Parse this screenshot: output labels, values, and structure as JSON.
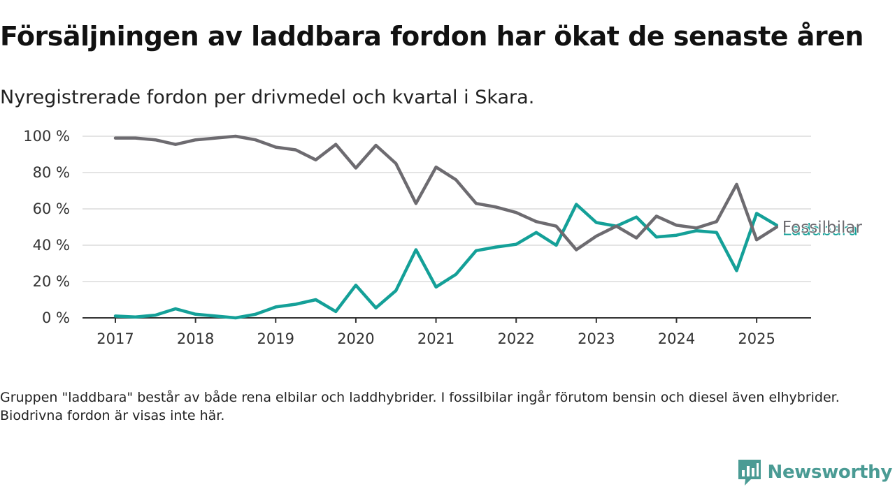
{
  "title": "Försäljningen av laddbara fordon har ökat de senaste åren",
  "subtitle": "Nyregistrerade fordon per drivmedel och kvartal i Skara.",
  "footnote": "Gruppen \"laddbara\" består av både rena elbilar och laddhybrider. I fossilbilar ingår förutom bensin och diesel även elhybrider. Biodrivna fordon är visas inte här.",
  "brand": {
    "name": "Newsworthy",
    "icon": "newsworthy-logo-icon",
    "color": "#4a9b94"
  },
  "chart_data": {
    "type": "line",
    "xlabel": "",
    "ylabel": "",
    "ylim": [
      0,
      100
    ],
    "y_ticks": [
      0,
      20,
      40,
      60,
      80,
      100
    ],
    "y_tick_suffix": " %",
    "x_ticks": [
      "2017",
      "2018",
      "2019",
      "2020",
      "2021",
      "2022",
      "2023",
      "2024",
      "2025"
    ],
    "grid": true,
    "legend": "direct labels at line ends (right)",
    "x": [
      "2017 Q1",
      "2017 Q2",
      "2017 Q3",
      "2017 Q4",
      "2018 Q1",
      "2018 Q2",
      "2018 Q3",
      "2018 Q4",
      "2019 Q1",
      "2019 Q2",
      "2019 Q3",
      "2019 Q4",
      "2020 Q1",
      "2020 Q2",
      "2020 Q3",
      "2020 Q4",
      "2021 Q1",
      "2021 Q2",
      "2021 Q3",
      "2021 Q4",
      "2022 Q1",
      "2022 Q2",
      "2022 Q3",
      "2022 Q4",
      "2023 Q1",
      "2023 Q2",
      "2023 Q3",
      "2023 Q4",
      "2024 Q1",
      "2024 Q2",
      "2024 Q3",
      "2024 Q4",
      "2025 Q1",
      "2025 Q2"
    ],
    "series": [
      {
        "name": "Fossilbilar",
        "color": "#6d6b70",
        "values": [
          99,
          99,
          98,
          95.5,
          98,
          99,
          100,
          98,
          94,
          92.5,
          87,
          95.5,
          82.5,
          95,
          85,
          63,
          83,
          76,
          63,
          61,
          58,
          53,
          50.5,
          37.5,
          45,
          50.5,
          44,
          56,
          51,
          49.5,
          53,
          73.5,
          43,
          50
        ]
      },
      {
        "name": "Laddbara",
        "color": "#14a098",
        "values": [
          1,
          0.5,
          1.5,
          5,
          2,
          1,
          0,
          2,
          6,
          7.5,
          10,
          3.5,
          18,
          5.5,
          15,
          37.5,
          17,
          24,
          37,
          39,
          40.5,
          47,
          40,
          62.5,
          52.5,
          50.5,
          55.5,
          44.5,
          45.5,
          48,
          47,
          26,
          57.5,
          51
        ]
      }
    ]
  }
}
